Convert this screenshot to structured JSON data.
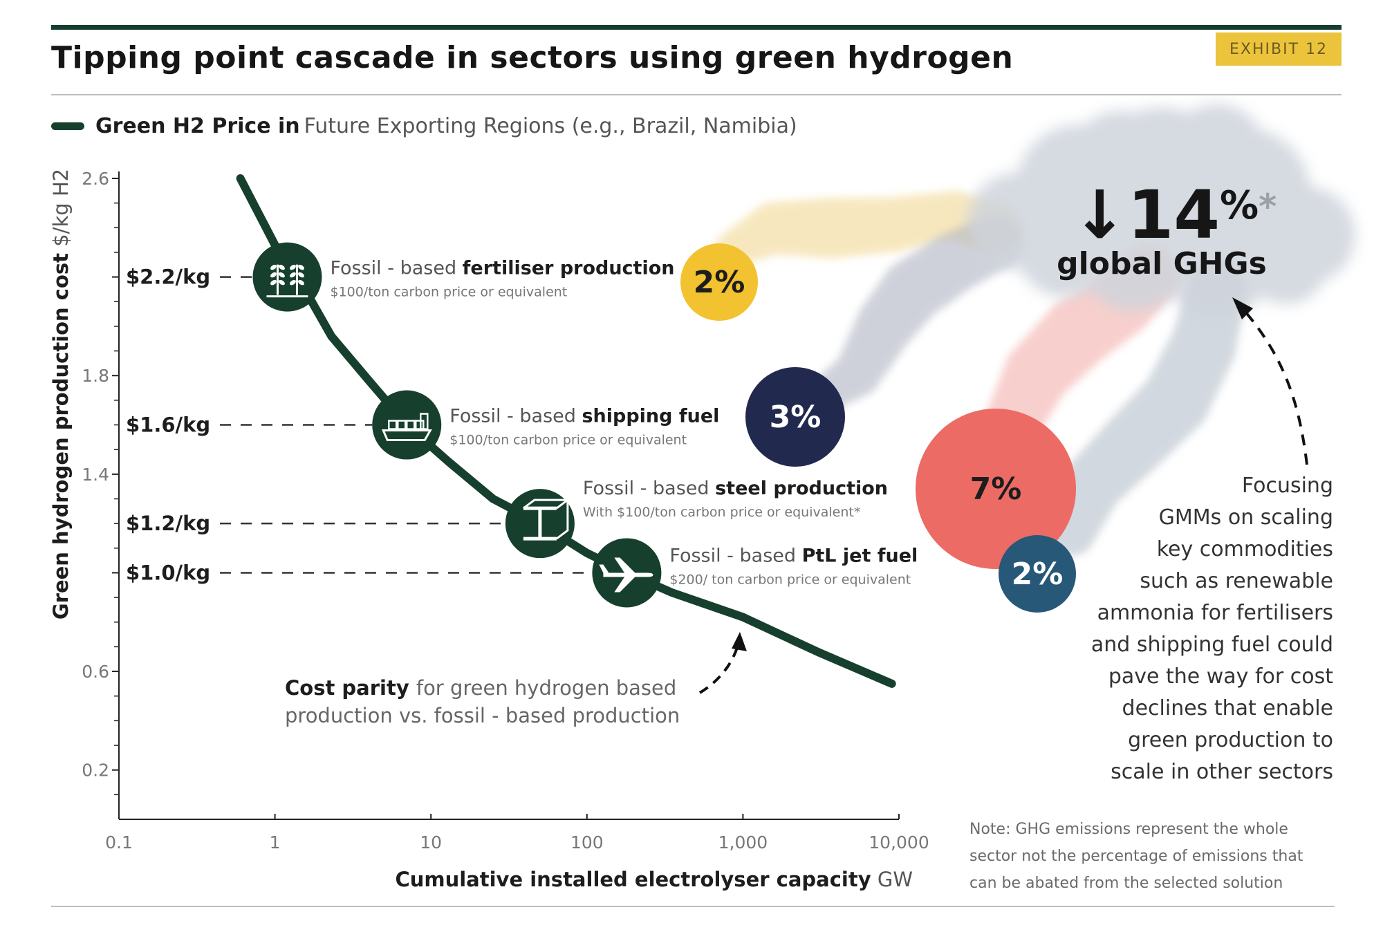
{
  "header": {
    "title": "Tipping point cascade in sectors using green hydrogen",
    "exhibit_label": "EXHIBIT 12"
  },
  "legend": {
    "bold_text": "Green H2 Price in",
    "rest_text": "Future Exporting Regions (e.g., Brazil, Namibia)",
    "color": "#163f2e"
  },
  "chart_data": {
    "type": "line",
    "x_scale": "log",
    "xlim": [
      0.1,
      10000
    ],
    "ylim": [
      0,
      2.6
    ],
    "xlabel_bold": "Cumulative installed electrolyser capacity",
    "xlabel_unit": "GW",
    "ylabel_bold": "Green hydrogen production cost",
    "ylabel_unit": "$/kg H2",
    "x_ticks": [
      {
        "value": 0.1,
        "label": "0.1"
      },
      {
        "value": 1,
        "label": "1"
      },
      {
        "value": 10,
        "label": "10"
      },
      {
        "value": 100,
        "label": "100"
      },
      {
        "value": 1000,
        "label": "1,000"
      },
      {
        "value": 10000,
        "label": "10,000"
      }
    ],
    "y_ticks": [
      {
        "value": 2.6,
        "label": "2.6"
      },
      {
        "value": 2.2,
        "label": "2.2"
      },
      {
        "value": 1.8,
        "label": "1.8"
      },
      {
        "value": 1.4,
        "label": "1.4"
      },
      {
        "value": 1.0,
        "label": "1.0"
      },
      {
        "value": 0.6,
        "label": "0.6"
      },
      {
        "value": 0.2,
        "label": "0.2"
      }
    ],
    "series": [
      {
        "color": "#163f2e",
        "x": [
          0.6,
          1,
          1.4,
          2.3,
          4,
          7,
          13,
          25,
          50,
          100,
          180,
          350,
          1000,
          3000,
          9000
        ],
        "y": [
          2.6,
          2.33,
          2.2,
          1.96,
          1.78,
          1.6,
          1.45,
          1.3,
          1.2,
          1.08,
          1.0,
          0.92,
          0.82,
          0.68,
          0.55
        ]
      }
    ],
    "milestones": [
      {
        "x": 1.2,
        "y": 2.2,
        "price_label": "$2.2/kg",
        "icon": "wheat-icon",
        "sector_prefix": "Fossil - based",
        "sector_bold": "fertiliser production",
        "carbon_note": "$100/ton carbon price or equivalent",
        "share": "2%",
        "share_color": "#f2c230",
        "share_text_color": "#1d1d1d"
      },
      {
        "x": 7,
        "y": 1.6,
        "price_label": "$1.6/kg",
        "icon": "ship-icon",
        "sector_prefix": "Fossil - based",
        "sector_bold": "shipping fuel",
        "carbon_note": "$100/ton carbon price or equivalent",
        "share": "3%",
        "share_color": "#22294f",
        "share_text_color": "#ffffff"
      },
      {
        "x": 50,
        "y": 1.2,
        "price_label": "$1.2/kg",
        "icon": "steel-beam-icon",
        "sector_prefix": "Fossil - based",
        "sector_bold": "steel production",
        "carbon_note": "With $100/ton carbon price or equivalent*",
        "share": "7%",
        "share_color": "#ec6b65",
        "share_text_color": "#1d1d1d"
      },
      {
        "x": 180,
        "y": 1.0,
        "price_label": "$1.0/kg",
        "icon": "airplane-icon",
        "sector_prefix": "Fossil - based",
        "sector_bold": "PtL jet fuel",
        "carbon_note": "$200/ ton carbon price or equivalent",
        "share": "2%",
        "share_color": "#275877",
        "share_text_color": "#ffffff"
      }
    ],
    "cost_parity_note": {
      "bold": "Cost parity",
      "line1_rest": "for green hydrogen based",
      "line2": "production vs. fossil - based production"
    },
    "ghg_cloud": {
      "arrow": "↓",
      "value": "14%",
      "asterisk": "*",
      "label": "global GHGs"
    }
  },
  "side_note": {
    "lines": [
      "Focusing",
      "GMMs on scaling",
      "key commodities",
      "such as renewable",
      "ammonia for fertilisers",
      "and shipping fuel could",
      "pave the way for cost",
      "declines that enable",
      "green production to",
      "scale in other sectors"
    ]
  },
  "footnote": {
    "lines": [
      "Note: GHG emissions represent the whole",
      "sector not the percentage of emissions that",
      "can be abated from the selected solution"
    ]
  }
}
